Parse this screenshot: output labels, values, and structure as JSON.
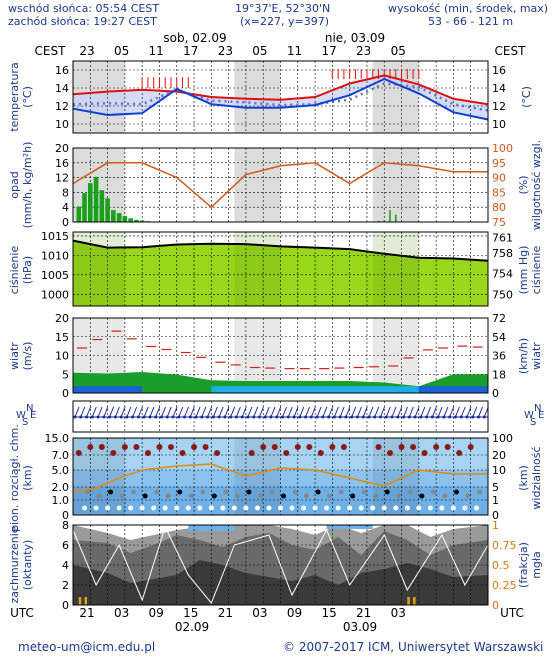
{
  "header": {
    "sunrise": "wschód słońca: 05:54 CEST",
    "sunset": "zachód słońca: 19:27 CEST",
    "coords": "19°37'E, 52°30'N",
    "grid": "(x=227, y=397)",
    "elevation_label": "wysokość (min, środek, max)",
    "elevation_values": "53 - 66 - 121 m"
  },
  "timeline": {
    "tz": "CEST",
    "utc": "UTC",
    "day1_label": "sob, 02.09",
    "day2_label": "nie, 03.09",
    "cest_ticks": [
      "23",
      "05",
      "11",
      "17",
      "23",
      "05",
      "11",
      "17",
      "23",
      "05"
    ],
    "utc_ticks": [
      "21",
      "03",
      "09",
      "15",
      "21",
      "03",
      "09",
      "15",
      "21",
      "03"
    ],
    "date1": "02.09",
    "date2": "03.09"
  },
  "colors": {
    "temp_max": "#e01010",
    "temp_mean": "#6a6acb",
    "temp_min": "#1040d0",
    "humidity": "#d05a1a",
    "precip": "#1aa01a",
    "wind_gust": "#d02010",
    "pressure_line": "#000000",
    "night_band": "#d8d8d8",
    "accent": "#1a3a8a"
  },
  "chart_data": [
    {
      "type": "line",
      "name": "temperature",
      "ylabel_left": "temperatura (°C)",
      "ylabel_right": "(°C)",
      "ylim": [
        9,
        17
      ],
      "yticks": [
        10,
        12,
        14,
        16
      ],
      "hours": [
        0,
        6,
        12,
        18,
        24,
        30,
        36,
        42,
        48,
        54,
        60,
        66,
        72
      ],
      "series": [
        {
          "role": "max",
          "values": [
            13.3,
            13.6,
            13.8,
            13.6,
            13.0,
            12.8,
            12.7,
            13.0,
            14.5,
            15.4,
            14.4,
            12.8,
            12.2
          ]
        },
        {
          "role": "mean",
          "values": [
            12.2,
            12.3,
            12.2,
            13.8,
            12.6,
            12.4,
            12.1,
            12.2,
            12.7,
            14.5,
            14.1,
            12.2,
            11.5
          ]
        },
        {
          "role": "min",
          "values": [
            11.7,
            11.0,
            11.2,
            13.9,
            12.2,
            11.8,
            11.8,
            12.1,
            13.2,
            15.0,
            13.4,
            11.3,
            10.5
          ]
        }
      ]
    },
    {
      "type": "bar",
      "name": "precipitation-humidity",
      "ylabel_left": "opad (mm/h, kg/m²h)",
      "ylabel_right": "wilgotność wzgl. (%)",
      "ylim_left": [
        0,
        20
      ],
      "yticks_left": [
        0,
        4,
        8,
        12,
        16,
        20
      ],
      "ylim_right": [
        75,
        100
      ],
      "yticks_right": [
        75,
        80,
        85,
        90,
        95,
        100
      ],
      "precip_hours": [
        1,
        2,
        3,
        4,
        5,
        6,
        7,
        8,
        9,
        10,
        11,
        12,
        13
      ],
      "precip_values": [
        4.2,
        7.8,
        10.5,
        12.2,
        8.6,
        6.4,
        3.2,
        2.4,
        1.6,
        1.0,
        0.6,
        0.4,
        0.2
      ],
      "late_precip_hours": [
        52,
        53,
        54,
        55,
        56
      ],
      "late_precip_values": [
        0.2,
        0.3,
        0.5,
        3.2,
        2.0
      ],
      "humidity_hours": [
        0,
        6,
        12,
        18,
        24,
        30,
        36,
        42,
        48,
        54,
        60,
        66,
        72
      ],
      "humidity_values": [
        88,
        95,
        95,
        90,
        80,
        91,
        94,
        95,
        88,
        95,
        94,
        92,
        92
      ]
    },
    {
      "type": "area",
      "name": "pressure",
      "ylabel_left": "ciśnienie (hPa)",
      "ylabel_right": "ciśnienie (mm Hg)",
      "ylim": [
        997,
        1016
      ],
      "yticks_left": [
        1000,
        1005,
        1010,
        1015
      ],
      "yticks_right": [
        750,
        754,
        758,
        761
      ],
      "hours": [
        0,
        6,
        12,
        18,
        24,
        30,
        36,
        42,
        48,
        54,
        60,
        66,
        72
      ],
      "values": [
        1013.8,
        1012.0,
        1012.1,
        1012.8,
        1013.0,
        1012.9,
        1012.3,
        1012.0,
        1011.6,
        1010.4,
        1009.4,
        1009.2,
        1008.6
      ]
    },
    {
      "type": "area",
      "name": "wind",
      "ylabel_left": "wiatr (m/s)",
      "ylabel_right": "wiatr (km/h)",
      "ylim": [
        0,
        20
      ],
      "yticks_left": [
        0,
        5,
        10,
        15,
        20
      ],
      "yticks_right": [
        0,
        18,
        36,
        54,
        72
      ],
      "hours": [
        0,
        6,
        12,
        18,
        24,
        30,
        36,
        42,
        48,
        54,
        60,
        66,
        72
      ],
      "speed_values": [
        5.4,
        5.2,
        5.6,
        4.9,
        3.4,
        3.2,
        3.2,
        3.2,
        3.2,
        2.8,
        1.8,
        5.0,
        5.0
      ],
      "gust_values": [
        12.0,
        16.5,
        12.4,
        10.8,
        8.2,
        6.8,
        6.5,
        6.5,
        6.8,
        7.2,
        11.5,
        12.5,
        12.0
      ]
    },
    {
      "type": "scatter",
      "name": "clouds-visibility",
      "ylabel_left": "pion. rozciągł. chm. (km)",
      "ylabel_right": "widzialność (km)",
      "yticks_left": [
        "0",
        "1.0",
        "2.0",
        "5.0",
        "7.0",
        "15.0"
      ],
      "yticks_right": [
        0,
        1,
        5,
        10,
        20,
        100
      ]
    },
    {
      "type": "area",
      "name": "cloud-cover-fog",
      "ylabel_left": "zachmurzenie (oktanty)",
      "ylabel_right": "mgła (frakcja)",
      "ylim_left": [
        0,
        8
      ],
      "yticks_left": [
        0,
        2,
        4,
        6,
        8
      ],
      "yticks_right": [
        "0",
        "0.25",
        "0.5",
        "0.75",
        "1"
      ]
    }
  ],
  "footer": {
    "email": "meteo-um@icm.edu.pl",
    "copyright": "© 2007-2017 ICM, Uniwersytet Warszawski"
  }
}
